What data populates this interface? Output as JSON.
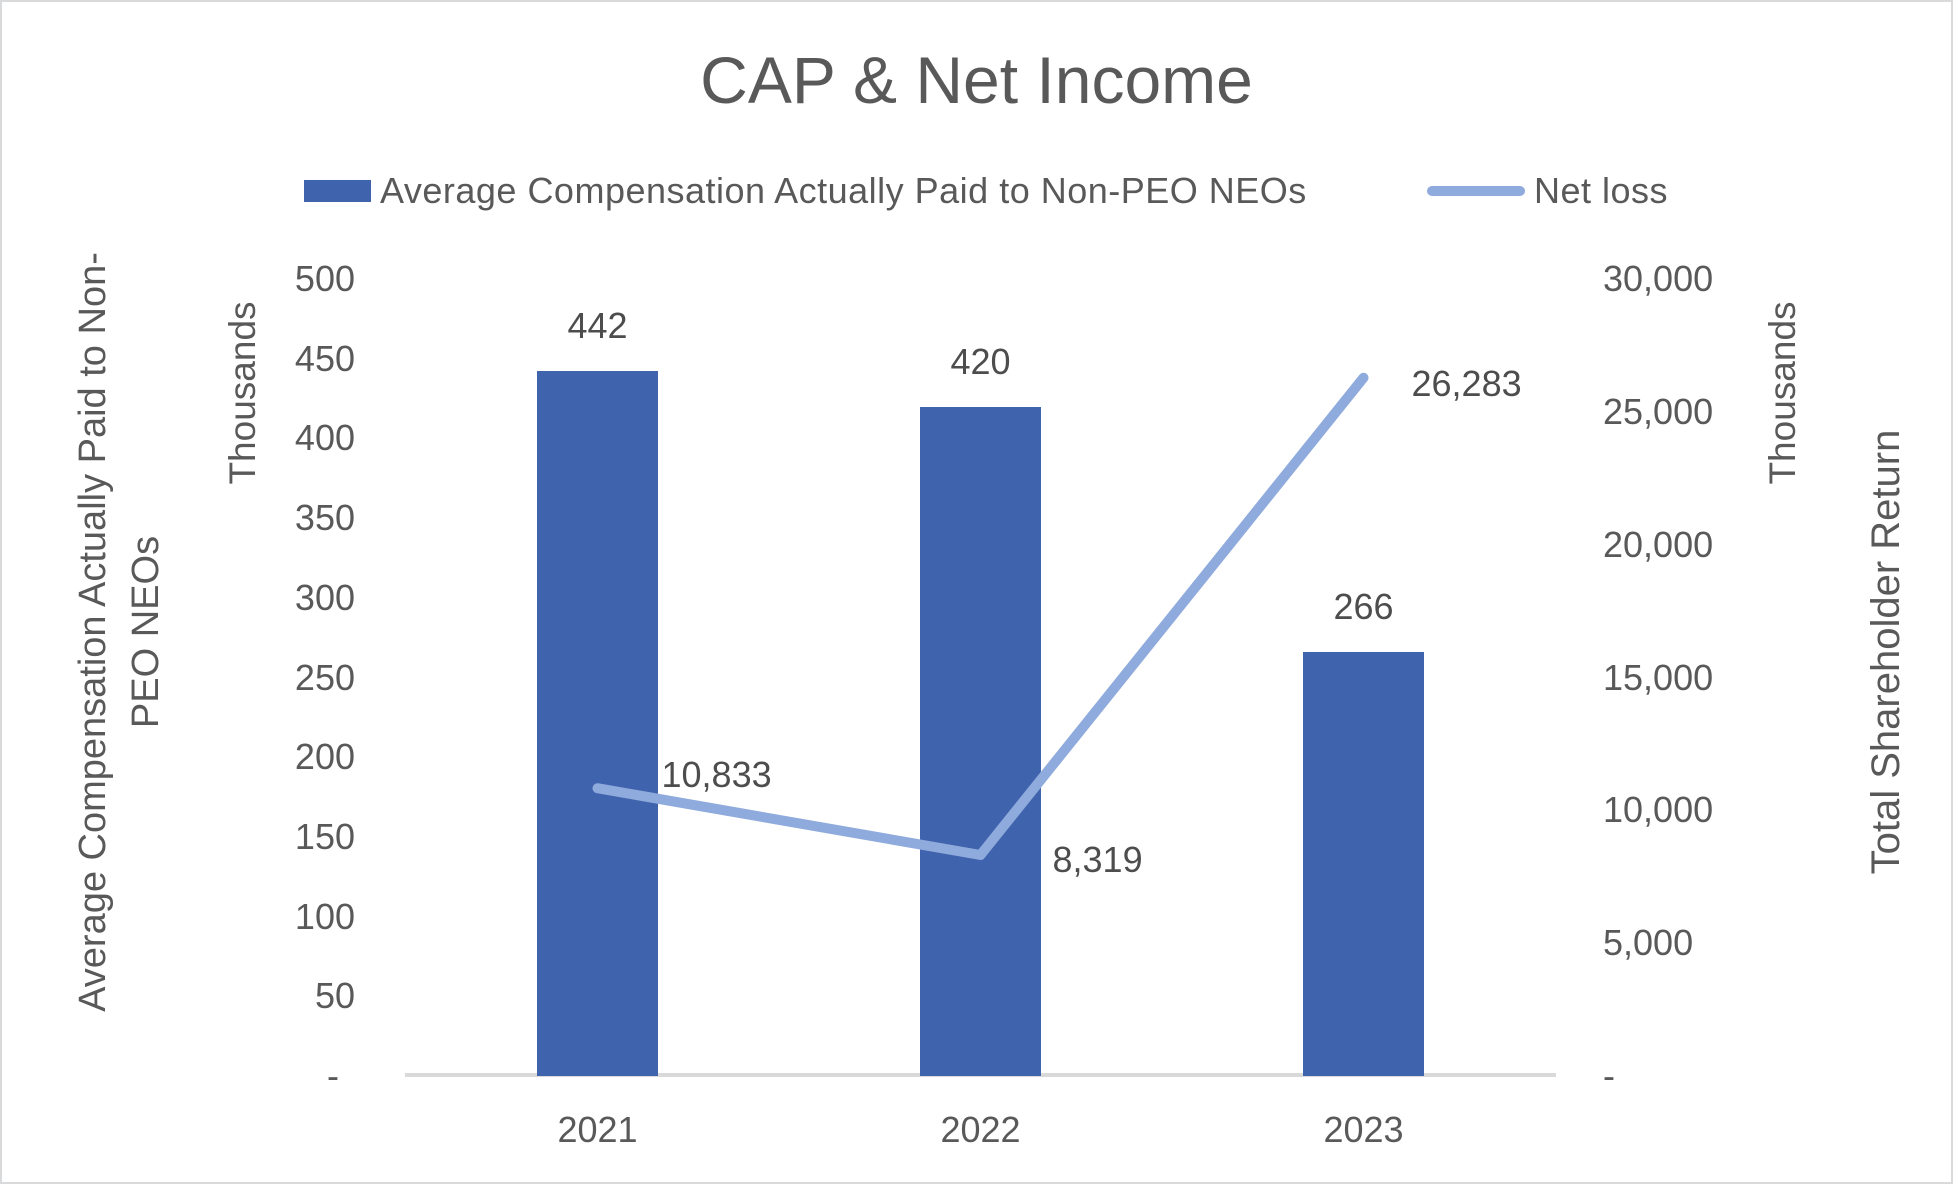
{
  "chart_data": {
    "type": "bar+line combo",
    "title": "CAP & Net Income",
    "categories": [
      "2021",
      "2022",
      "2023"
    ],
    "series": [
      {
        "name": "Average Compensation Actually Paid to Non-PEO NEOs",
        "type": "bar",
        "axis": "left",
        "values": [
          442,
          420,
          266
        ],
        "labels": [
          "442",
          "420",
          "266"
        ],
        "color": "#3f63ac"
      },
      {
        "name": "Net loss",
        "type": "line",
        "axis": "right",
        "values": [
          10833,
          8319,
          26283
        ],
        "labels": [
          "10,833",
          "8,319",
          "26,283"
        ],
        "color": "#8faadc"
      }
    ],
    "left_axis": {
      "title_line1": "Average Compensation Actually Paid to Non-",
      "title_line2": "PEO NEOs",
      "units_label": "Thousands",
      "min": 0,
      "max": 500,
      "step": 50,
      "tick_labels": [
        "500",
        "450",
        "400",
        "350",
        "300",
        "250",
        "200",
        "150",
        "100",
        "50",
        "-"
      ]
    },
    "right_axis": {
      "title": "Total Shareholder Return",
      "units_label": "Thousands",
      "min": 0,
      "max": 30000,
      "step": 5000,
      "tick_labels": [
        "30,000",
        "25,000",
        "20,000",
        "15,000",
        "10,000",
        "5,000",
        "-"
      ]
    },
    "grid": false,
    "legend_position": "top"
  },
  "colors": {
    "bar": "#3f63ac",
    "line": "#8faadc",
    "text": "#595959",
    "data_label": "#4d4d4d",
    "axis_line": "#d9d9d9"
  }
}
